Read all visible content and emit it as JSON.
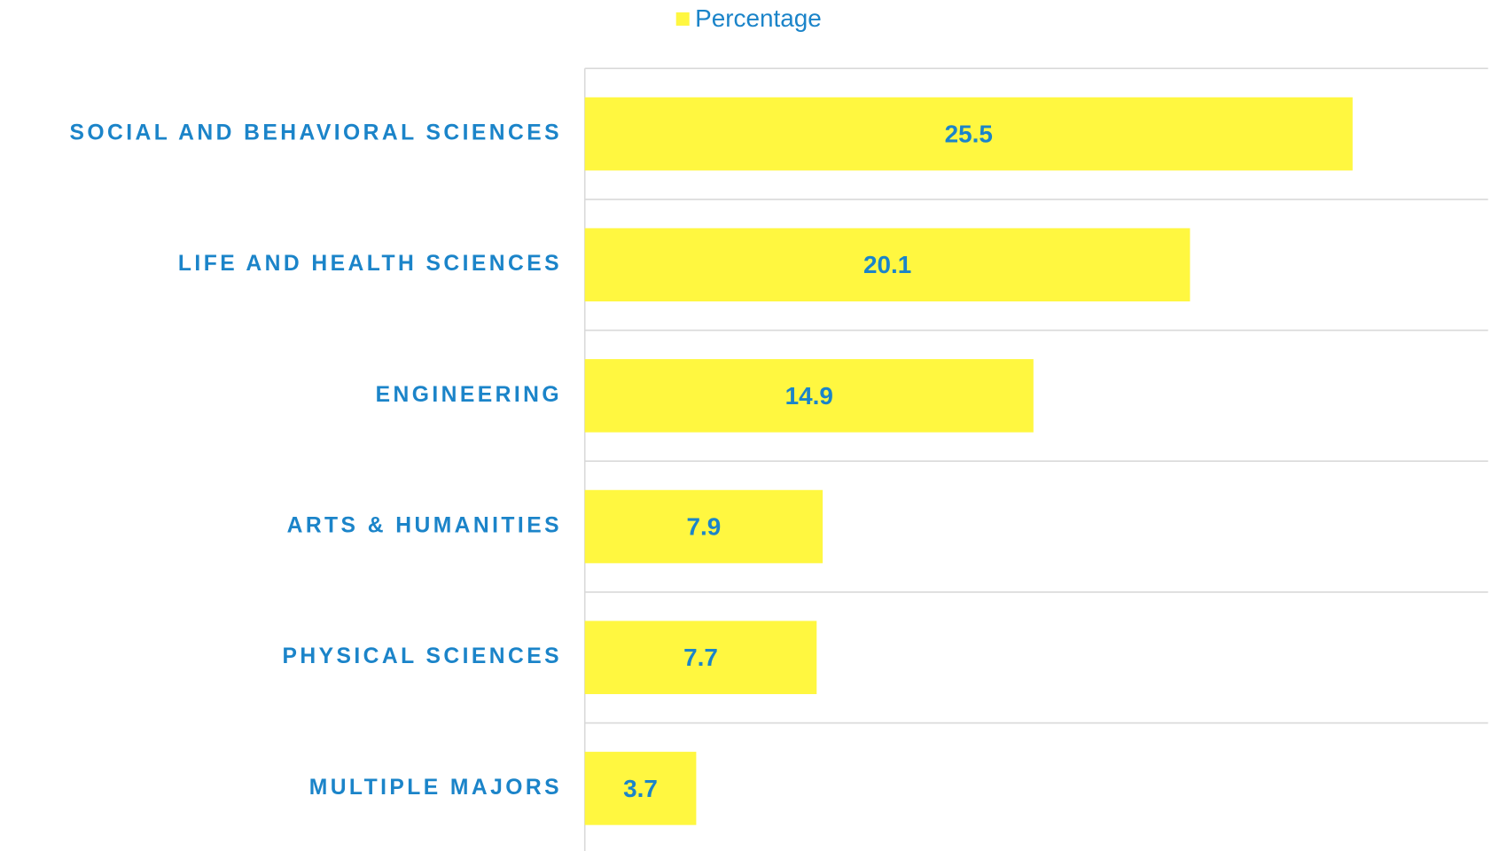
{
  "chart_data": {
    "type": "bar",
    "orientation": "horizontal",
    "categories": [
      "SOCIAL AND BEHAVIORAL SCIENCES",
      "LIFE AND HEALTH SCIENCES",
      "ENGINEERING",
      "ARTS & HUMANITIES",
      "PHYSICAL SCIENCES",
      "MULTIPLE MAJORS"
    ],
    "series": [
      {
        "name": "Percentage",
        "color": "#fff740",
        "values": [
          25.5,
          20.1,
          14.9,
          7.9,
          7.7,
          3.7
        ]
      }
    ],
    "xlim": [
      0,
      30
    ],
    "legend": "top"
  }
}
